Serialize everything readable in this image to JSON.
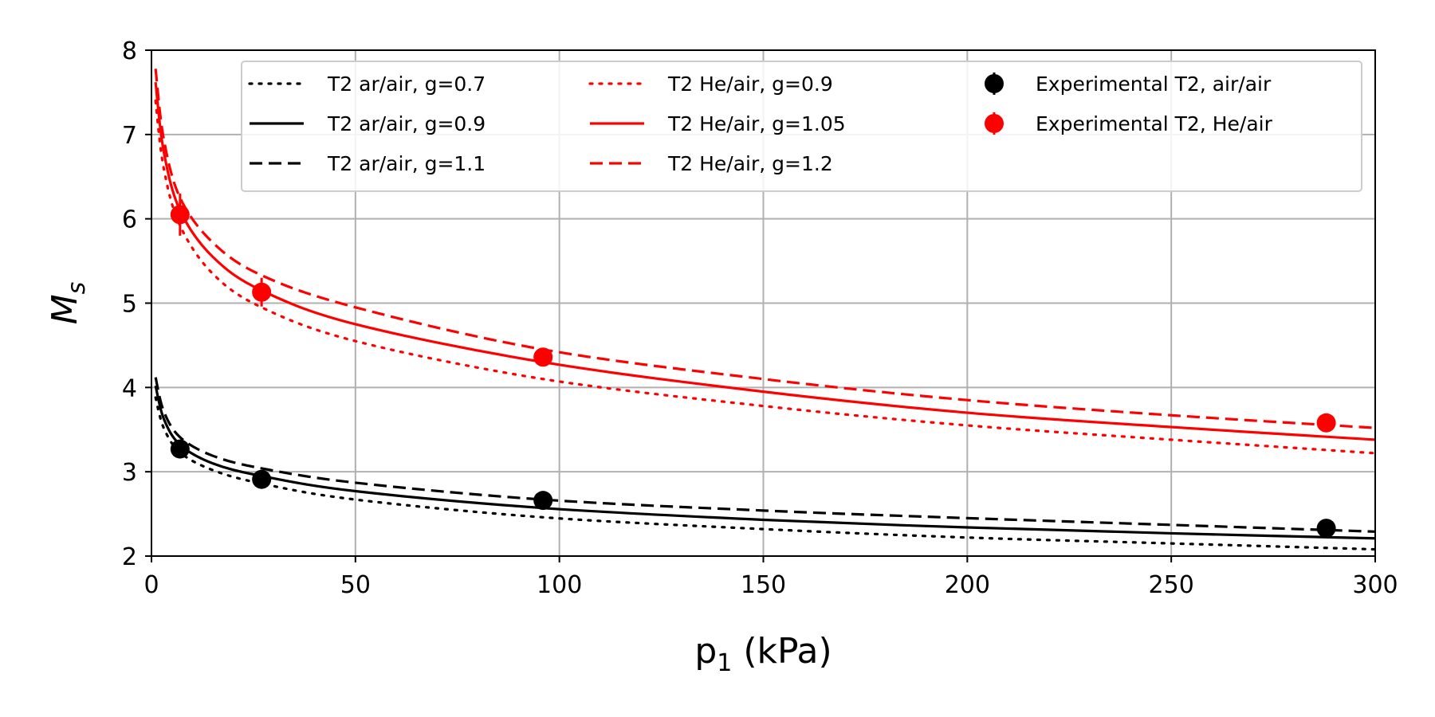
{
  "chart_data": {
    "type": "line",
    "xlabel_main": "p",
    "xlabel_sub": "1",
    "xlabel_unit": " (kPa)",
    "ylabel_main": "M",
    "ylabel_sub": "s",
    "xlim": [
      0,
      300
    ],
    "ylim": [
      2,
      8
    ],
    "x_ticks": [
      0,
      50,
      100,
      150,
      200,
      250,
      300
    ],
    "y_ticks": [
      2,
      3,
      4,
      5,
      6,
      7,
      8
    ],
    "grid": true,
    "legend_position": "top-right",
    "colors": {
      "black": "#000000",
      "red": "#ff0000",
      "grid": "#b0b0b0"
    },
    "series": [
      {
        "name": "T2 ar/air, g=0.7",
        "color": "#000000",
        "style": "dotted",
        "x": [
          1,
          3,
          7,
          15,
          27,
          50,
          96,
          150,
          200,
          250,
          300
        ],
        "y": [
          3.88,
          3.52,
          3.23,
          3.02,
          2.86,
          2.67,
          2.46,
          2.32,
          2.22,
          2.15,
          2.08
        ]
      },
      {
        "name": "T2 ar/air, g=0.9",
        "color": "#000000",
        "style": "solid",
        "x": [
          1,
          3,
          7,
          15,
          27,
          50,
          96,
          150,
          200,
          250,
          300
        ],
        "y": [
          4.02,
          3.63,
          3.32,
          3.1,
          2.95,
          2.77,
          2.57,
          2.43,
          2.34,
          2.27,
          2.21
        ]
      },
      {
        "name": "T2 ar/air, g=1.1",
        "color": "#000000",
        "style": "dashed",
        "x": [
          1,
          3,
          7,
          15,
          27,
          50,
          96,
          150,
          200,
          250,
          300
        ],
        "y": [
          4.12,
          3.72,
          3.41,
          3.19,
          3.04,
          2.87,
          2.67,
          2.54,
          2.45,
          2.37,
          2.29
        ]
      },
      {
        "name": "T2 He/air,  g=0.9",
        "color": "#ff0000",
        "style": "dotted",
        "x": [
          1,
          3,
          7,
          15,
          27,
          50,
          96,
          150,
          200,
          250,
          300
        ],
        "y": [
          7.4,
          6.6,
          5.92,
          5.35,
          4.95,
          4.55,
          4.1,
          3.78,
          3.55,
          3.38,
          3.22
        ]
      },
      {
        "name": "T2 He/air, g=1.05",
        "color": "#ff0000",
        "style": "solid",
        "x": [
          1,
          3,
          7,
          15,
          27,
          50,
          96,
          150,
          200,
          250,
          300
        ],
        "y": [
          7.62,
          6.8,
          6.1,
          5.55,
          5.15,
          4.75,
          4.3,
          3.95,
          3.7,
          3.53,
          3.38
        ]
      },
      {
        "name": "T2 He/air, g=1.2",
        "color": "#ff0000",
        "style": "dashed",
        "x": [
          1,
          3,
          7,
          15,
          27,
          50,
          96,
          150,
          200,
          250,
          300
        ],
        "y": [
          7.78,
          6.95,
          6.25,
          5.72,
          5.33,
          4.95,
          4.45,
          4.1,
          3.85,
          3.67,
          3.52
        ]
      }
    ],
    "experimental": [
      {
        "name": "Experimental T2, air/air",
        "color": "#000000",
        "points": [
          {
            "x": 7,
            "y": 3.27,
            "err": 0.07
          },
          {
            "x": 27,
            "y": 2.91,
            "err": 0.05
          },
          {
            "x": 96,
            "y": 2.66,
            "err": 0.04
          },
          {
            "x": 288,
            "y": 2.33,
            "err": 0.04
          }
        ]
      },
      {
        "name": "Experimental T2, He/air",
        "color": "#ff0000",
        "points": [
          {
            "x": 7,
            "y": 6.05,
            "err": 0.25
          },
          {
            "x": 27,
            "y": 5.13,
            "err": 0.17
          },
          {
            "x": 96,
            "y": 4.36,
            "err": 0.06
          },
          {
            "x": 288,
            "y": 3.58,
            "err": 0.05
          }
        ]
      }
    ]
  }
}
